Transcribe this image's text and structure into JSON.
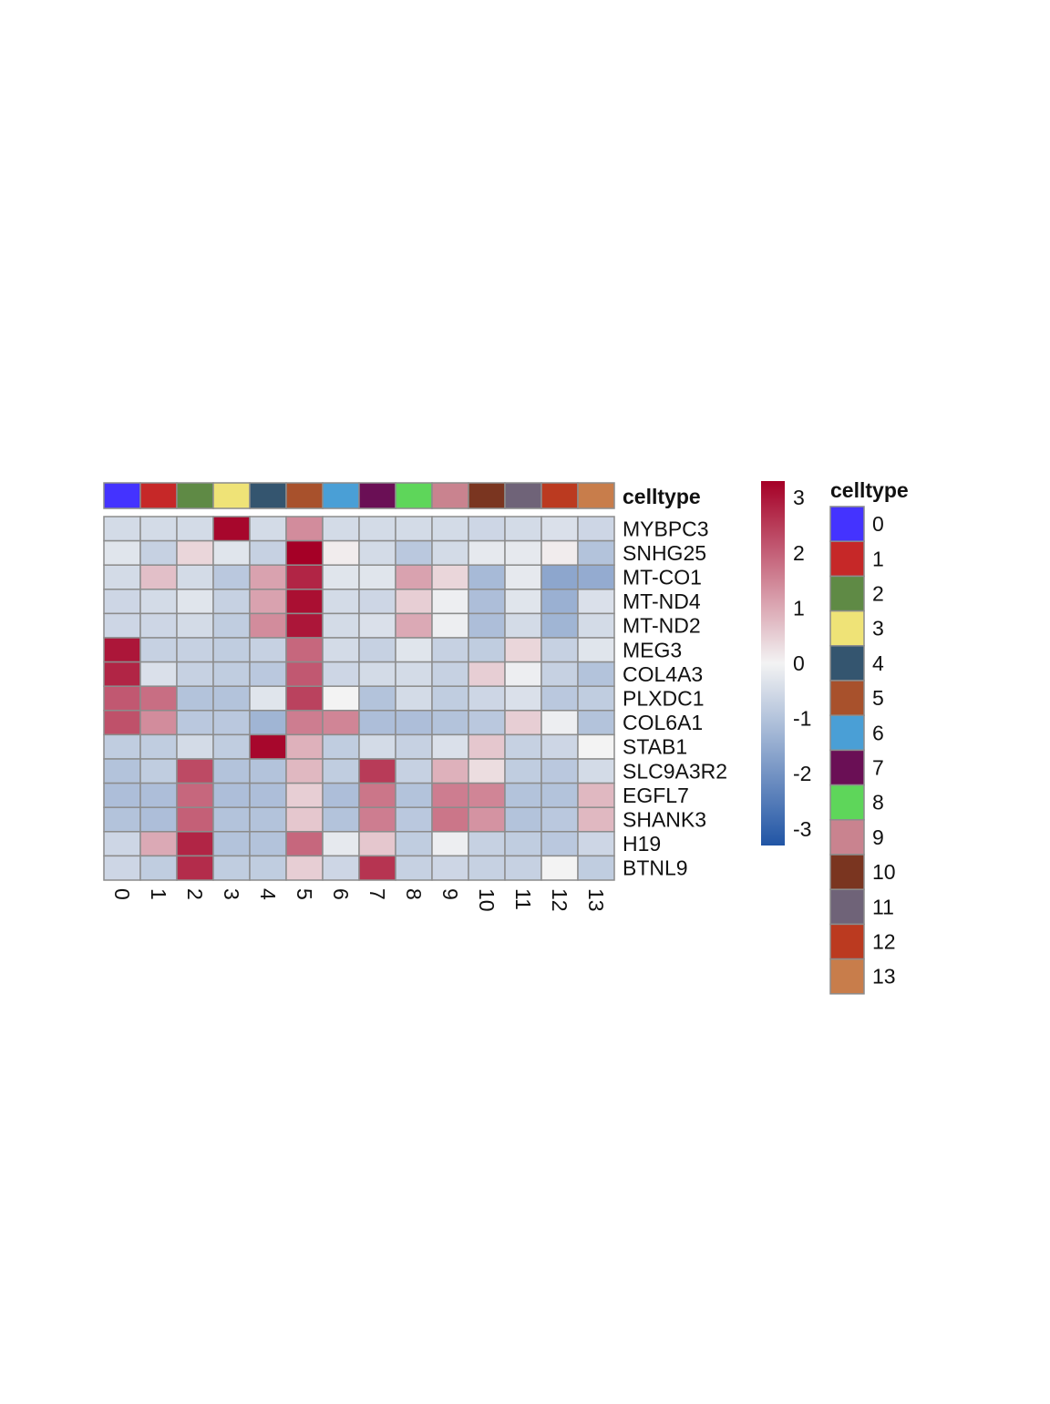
{
  "chart_data": {
    "type": "heatmap",
    "title": "",
    "xlabel": "",
    "ylabel": "",
    "columns": [
      "0",
      "1",
      "2",
      "3",
      "4",
      "5",
      "6",
      "7",
      "8",
      "9",
      "10",
      "11",
      "12",
      "13"
    ],
    "rows": [
      "MYBPC3",
      "SNHG25",
      "MT-CO1",
      "MT-ND4",
      "MT-ND2",
      "MEG3",
      "COL4A3",
      "PLXDC1",
      "COL6A1",
      "STAB1",
      "SLC9A3R2",
      "EGFL7",
      "SHANK3",
      "H19",
      "BTNL9"
    ],
    "values": [
      [
        -0.5,
        -0.5,
        -0.5,
        3.2,
        -0.5,
        1.4,
        -0.5,
        -0.5,
        -0.5,
        -0.5,
        -0.6,
        -0.5,
        -0.4,
        -0.6
      ],
      [
        -0.3,
        -0.7,
        0.4,
        -0.3,
        -0.7,
        3.3,
        0.1,
        -0.5,
        -0.9,
        -0.5,
        -0.2,
        -0.2,
        0.1,
        -1.0
      ],
      [
        -0.5,
        0.7,
        -0.5,
        -0.9,
        1.1,
        2.8,
        -0.3,
        -0.3,
        1.1,
        0.4,
        -1.2,
        -0.2,
        -1.6,
        -1.5
      ],
      [
        -0.6,
        -0.5,
        -0.3,
        -0.7,
        1.1,
        3.1,
        -0.5,
        -0.6,
        0.5,
        -0.1,
        -1.1,
        -0.3,
        -1.4,
        -0.4
      ],
      [
        -0.6,
        -0.6,
        -0.5,
        -0.8,
        1.4,
        3.0,
        -0.5,
        -0.4,
        1.0,
        -0.1,
        -1.1,
        -0.5,
        -1.3,
        -0.5
      ],
      [
        3.0,
        -0.7,
        -0.7,
        -0.8,
        -0.7,
        1.9,
        -0.5,
        -0.7,
        -0.3,
        -0.7,
        -0.8,
        0.4,
        -0.7,
        -0.3
      ],
      [
        2.8,
        -0.4,
        -0.7,
        -0.8,
        -0.9,
        2.1,
        -0.6,
        -0.5,
        -0.5,
        -0.7,
        0.5,
        -0.1,
        -0.7,
        -1.0
      ],
      [
        2.1,
        1.8,
        -1.0,
        -1.0,
        -0.3,
        2.4,
        0.0,
        -1.0,
        -0.5,
        -0.8,
        -0.6,
        -0.4,
        -0.9,
        -0.8
      ],
      [
        2.2,
        1.4,
        -0.9,
        -0.9,
        -1.3,
        1.6,
        1.5,
        -1.1,
        -1.1,
        -1.0,
        -0.9,
        0.5,
        -0.1,
        -1.0
      ],
      [
        -0.8,
        -0.8,
        -0.5,
        -0.8,
        3.2,
        0.9,
        -0.8,
        -0.5,
        -0.7,
        -0.4,
        0.6,
        -0.7,
        -0.6,
        0.0
      ],
      [
        -1.0,
        -0.8,
        2.3,
        -1.0,
        -1.0,
        0.8,
        -0.8,
        2.5,
        -0.7,
        0.9,
        0.3,
        -0.8,
        -0.9,
        -0.5
      ],
      [
        -1.1,
        -1.1,
        1.9,
        -1.1,
        -1.1,
        0.5,
        -1.1,
        1.7,
        -1.0,
        1.6,
        1.5,
        -1.0,
        -1.0,
        0.8
      ],
      [
        -1.0,
        -1.1,
        2.0,
        -1.0,
        -1.0,
        0.6,
        -1.0,
        1.6,
        -0.9,
        1.7,
        1.3,
        -1.0,
        -0.9,
        0.8
      ],
      [
        -0.6,
        1.0,
        2.8,
        -1.0,
        -1.0,
        1.9,
        -0.2,
        0.6,
        -0.8,
        -0.1,
        -0.7,
        -0.8,
        -0.9,
        -0.6
      ],
      [
        -0.6,
        -0.8,
        2.7,
        -0.8,
        -0.8,
        0.5,
        -0.6,
        2.6,
        -0.7,
        -0.6,
        -0.7,
        -0.7,
        0.0,
        -0.8
      ]
    ],
    "color_scale": {
      "min": -3.3,
      "max": 3.3,
      "low": "#2155a5",
      "mid": "#f3f3f3",
      "high": "#a50026"
    },
    "colorbar_ticks": [
      "3",
      "2",
      "1",
      "0",
      "-1",
      "-2",
      "-3"
    ],
    "annotation": {
      "title": "celltype",
      "levels": [
        "0",
        "1",
        "2",
        "3",
        "4",
        "5",
        "6",
        "7",
        "8",
        "9",
        "10",
        "11",
        "12",
        "13"
      ],
      "colors": [
        "#4433ff",
        "#c62828",
        "#5f8a45",
        "#efe377",
        "#34556f",
        "#a8512c",
        "#4a9fd6",
        "#6a0f55",
        "#5ed65a",
        "#c9838f",
        "#7a3520",
        "#6f6378",
        "#bb3a20",
        "#c87d4b"
      ]
    },
    "legend_title": "celltype",
    "legend_position": "right",
    "grid": true
  }
}
